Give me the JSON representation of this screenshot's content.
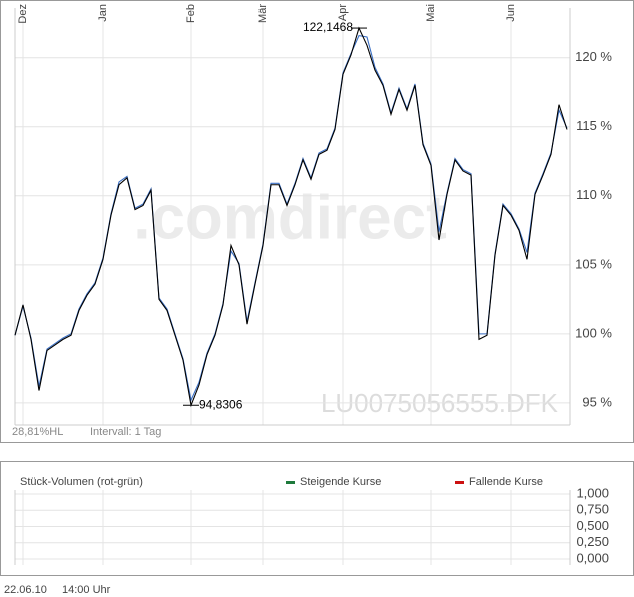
{
  "chart_data": [
    {
      "type": "line",
      "categories": [
        null,
        "Dez",
        null,
        null,
        null,
        null,
        null,
        null,
        null,
        null,
        null,
        "Jan",
        null,
        null,
        null,
        null,
        null,
        null,
        null,
        null,
        null,
        null,
        "Feb",
        null,
        null,
        null,
        null,
        null,
        null,
        null,
        null,
        "Mär",
        null,
        null,
        null,
        null,
        null,
        null,
        null,
        null,
        null,
        "Apr",
        null,
        null,
        null,
        null,
        null,
        null,
        null,
        null,
        null,
        null,
        "Mai",
        null,
        null,
        null,
        null,
        null,
        null,
        null,
        null,
        null,
        "Jun",
        null,
        null,
        null,
        null,
        null,
        null,
        null
      ],
      "series": [
        {
          "name": null,
          "color": "#000000",
          "values": [
            99.9,
            102.1,
            99.6,
            95.9,
            98.8,
            99.2,
            99.6,
            99.9,
            101.7,
            102.8,
            103.6,
            105.4,
            108.6,
            110.8,
            111.3,
            109.0,
            109.3,
            110.4,
            102.5,
            101.7,
            99.9,
            98.1,
            94.8306,
            96.3,
            98.5,
            99.9,
            102.1,
            106.4,
            105.0,
            100.7,
            103.6,
            106.4,
            110.8,
            110.8,
            109.3,
            110.8,
            112.6,
            111.2,
            113.0,
            113.3,
            114.8,
            118.8,
            120.2,
            122.1468,
            120.9,
            119.1,
            118.0,
            115.9,
            117.7,
            116.2,
            118.0,
            113.7,
            112.2,
            106.8,
            110.1,
            112.6,
            111.8,
            111.5,
            99.6,
            99.9,
            105.7,
            109.3,
            108.6,
            107.5,
            105.4,
            110.1,
            111.5,
            113.0,
            116.6,
            114.8
          ]
        },
        {
          "name": null,
          "color": "#3a6fc4",
          "values": [
            99.9,
            102.0,
            99.7,
            96.2,
            98.9,
            99.3,
            99.7,
            100.0,
            101.8,
            102.9,
            103.7,
            105.5,
            108.7,
            111.0,
            111.4,
            109.1,
            109.4,
            110.5,
            102.6,
            101.8,
            100.0,
            98.2,
            95.2,
            96.5,
            98.6,
            100.0,
            102.2,
            106.0,
            105.1,
            100.9,
            103.7,
            106.5,
            110.9,
            110.9,
            109.4,
            110.9,
            112.7,
            111.3,
            113.1,
            113.4,
            114.9,
            118.9,
            120.3,
            121.6,
            121.5,
            119.3,
            118.1,
            116.0,
            117.8,
            116.3,
            118.1,
            113.8,
            112.3,
            107.4,
            110.2,
            112.7,
            111.9,
            111.6,
            100.0,
            100.0,
            105.8,
            109.4,
            108.7,
            107.6,
            105.9,
            110.2,
            111.6,
            113.1,
            116.2,
            114.9
          ]
        }
      ],
      "ylim": [
        93.4,
        123.6
      ],
      "yticks": [
        {
          "value": 95,
          "label": "95 %"
        },
        {
          "value": 100,
          "label": "100 %"
        },
        {
          "value": 105,
          "label": "105 %"
        },
        {
          "value": 110,
          "label": "110 %"
        },
        {
          "value": 115,
          "label": "115 %"
        },
        {
          "value": 120,
          "label": "120 %"
        }
      ],
      "grid": true,
      "annotations": [
        {
          "label": "122,1468",
          "value": 122.1468
        },
        {
          "label": "94,8306",
          "value": 94.8306
        }
      ],
      "notes": [
        "28,81%HL",
        "Intervall: 1 Tag"
      ],
      "watermark": ".comdirect",
      "symbol": "LU0075056555.DFK"
    },
    {
      "type": "bar",
      "title": "Stück-Volumen (rot-grün)",
      "series": [
        {
          "name": "Steigende Kurse",
          "color": "#1e7a3c",
          "values": []
        },
        {
          "name": "Fallende Kurse",
          "color": "#cc1111",
          "values": []
        }
      ],
      "ylim": [
        0,
        1
      ],
      "yticks": [
        {
          "value": 0,
          "label": "0,000"
        },
        {
          "value": 0.25,
          "label": "0,250"
        },
        {
          "value": 0.5,
          "label": "0,500"
        },
        {
          "value": 0.75,
          "label": "0,750"
        },
        {
          "value": 1,
          "label": "1,000"
        }
      ],
      "grid": true
    }
  ],
  "footer": {
    "date": "22.06.10",
    "time": "14:00 Uhr"
  }
}
